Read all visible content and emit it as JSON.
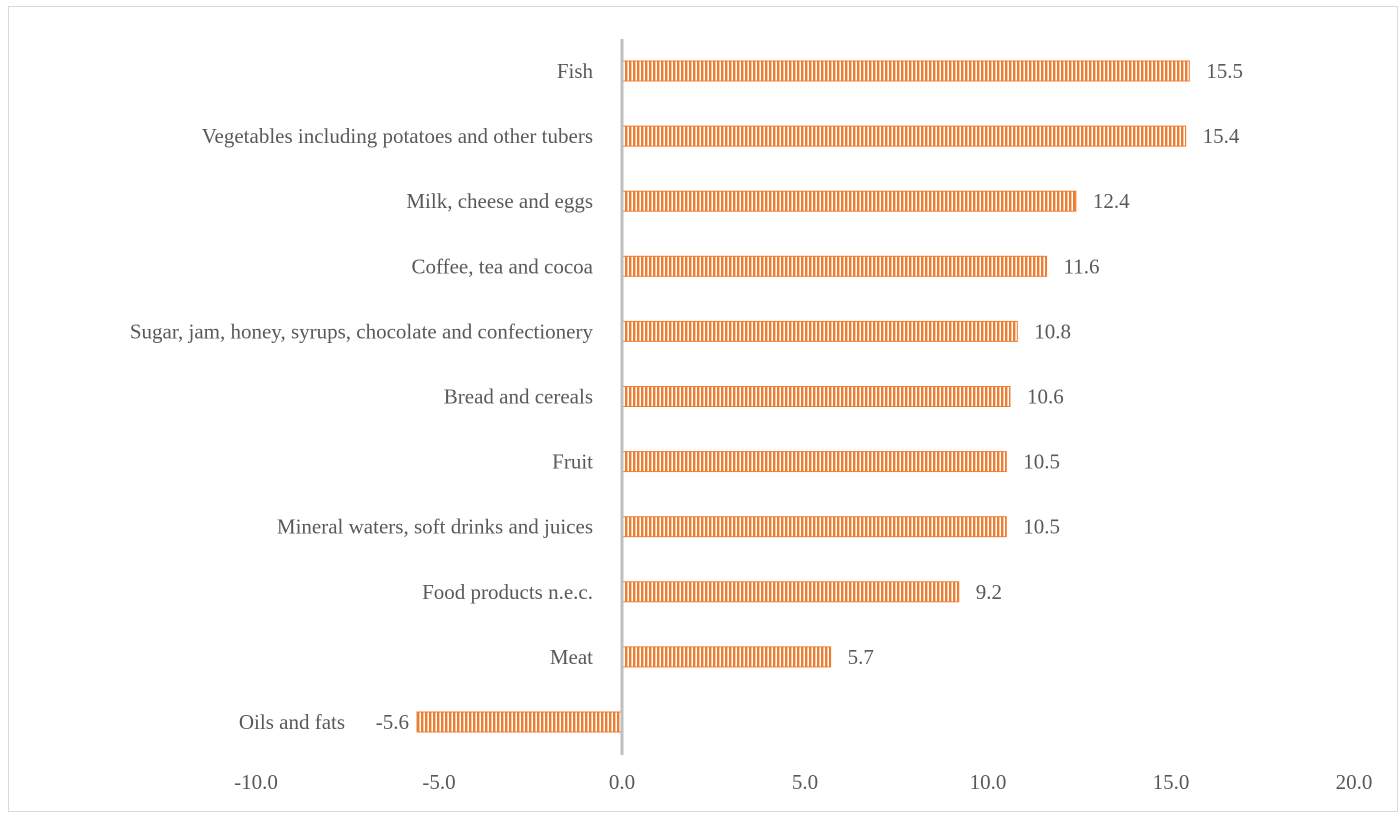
{
  "chart_data": {
    "type": "bar",
    "orientation": "horizontal",
    "title": "",
    "xlabel": "",
    "ylabel": "",
    "categories": [
      "Fish",
      "Vegetables including potatoes and other tubers",
      "Milk, cheese and eggs",
      "Coffee, tea and cocoa",
      "Sugar, jam, honey, syrups, chocolate and confectionery",
      "Bread and cereals",
      "Fruit",
      "Mineral waters, soft drinks and juices",
      "Food products n.e.c.",
      "Meat",
      "Oils and fats"
    ],
    "values": [
      15.5,
      15.4,
      12.4,
      11.6,
      10.8,
      10.6,
      10.5,
      10.5,
      9.2,
      5.7,
      -5.6
    ],
    "value_labels": [
      "15.5",
      "15.4",
      "12.4",
      "11.6",
      "10.8",
      "10.6",
      "10.5",
      "10.5",
      "9.2",
      "5.7",
      "-5.6"
    ],
    "xlim": [
      -10,
      20
    ],
    "xticks": [
      -10,
      -5,
      0,
      5,
      10,
      15,
      20
    ],
    "xtick_labels": [
      "-10.0",
      "-5.0",
      "0.0",
      "5.0",
      "10.0",
      "15.0",
      "20.0"
    ],
    "grid": false,
    "legend": "none",
    "bar_color": "#ed7d31",
    "bar_pattern": "vertical-stripes",
    "axis_color": "#bfbfbf",
    "text_color": "#595959"
  }
}
